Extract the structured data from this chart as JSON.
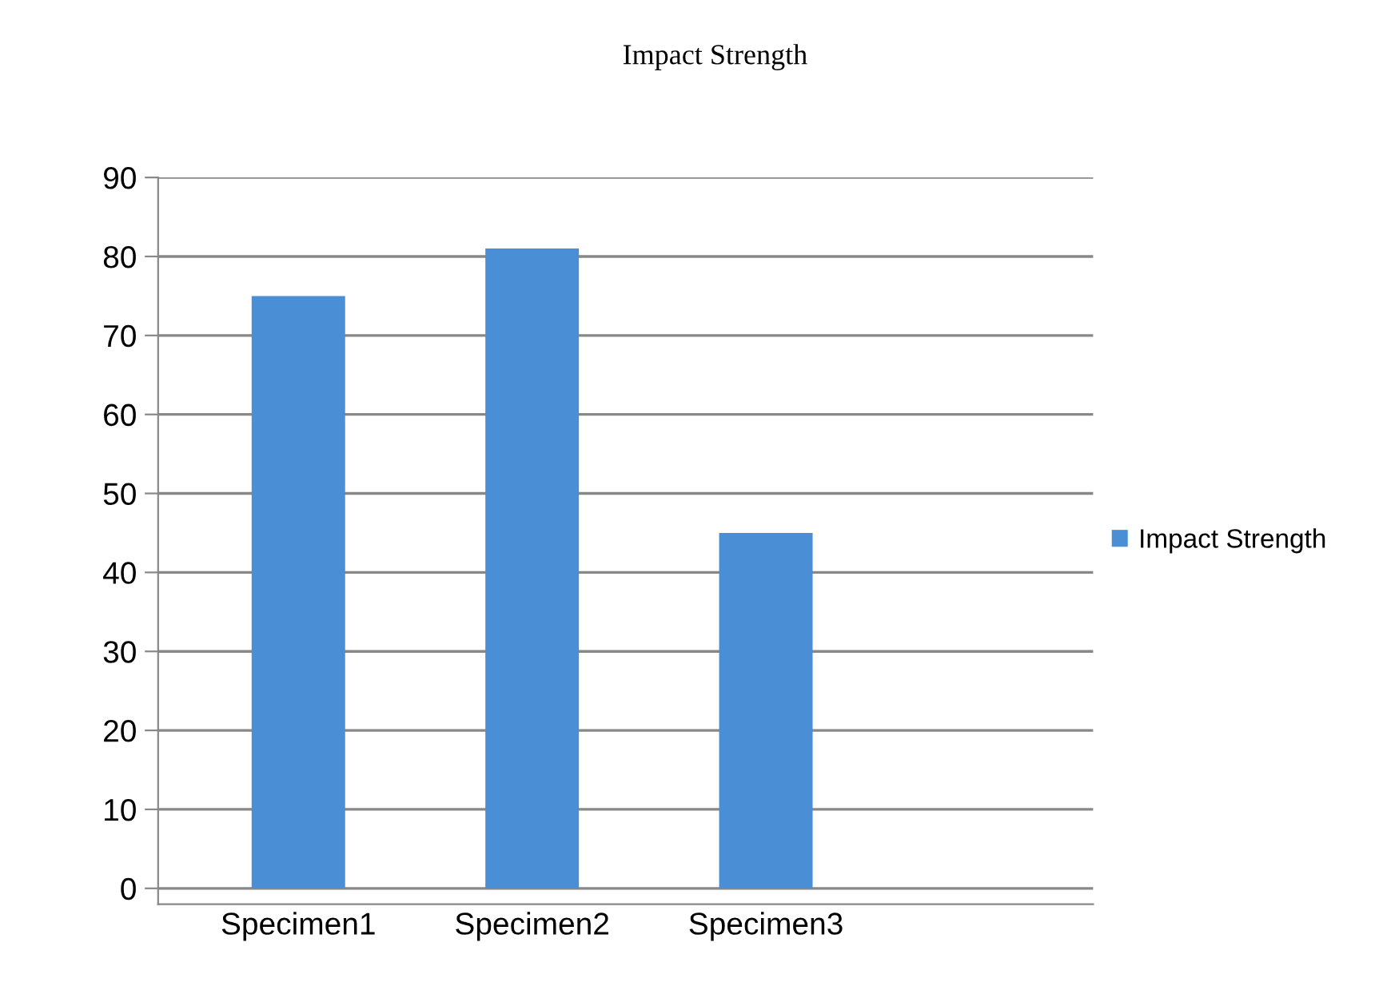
{
  "chart_data": {
    "type": "bar",
    "title": "Impact Strength",
    "categories": [
      "Specimen1",
      "Specimen2",
      "Specimen3"
    ],
    "series": [
      {
        "name": "Impact Strength",
        "color": "#4a8fd6",
        "values": [
          75,
          81,
          45
        ]
      }
    ],
    "ylim": [
      -2,
      90
    ],
    "yticks": [
      0,
      10,
      20,
      30,
      40,
      50,
      60,
      70,
      80,
      90
    ],
    "grid": "y",
    "legend": "right"
  }
}
